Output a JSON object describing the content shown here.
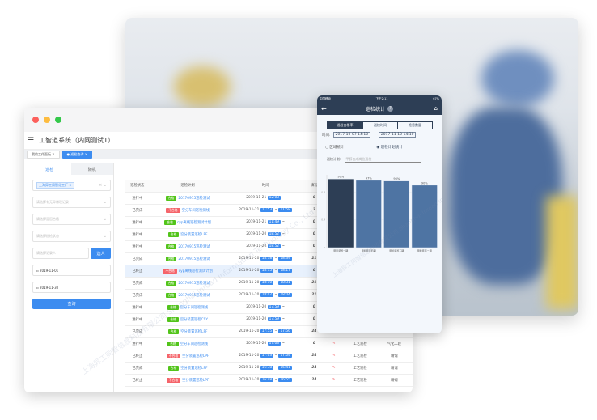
{
  "window": {
    "title": "工智道系统（内网测试1）",
    "tabs": [
      {
        "label": "我的工作面板"
      },
      {
        "label": "巡检查询"
      }
    ]
  },
  "filters": {
    "tabs": [
      {
        "label": "巡检"
      },
      {
        "label": "随机"
      }
    ],
    "factory_tag": "上海异工周智化工厂",
    "abnormal_placeholder": "请选择有无异常现记录",
    "qualified_placeholder": "请选择是否合格",
    "status_placeholder": "请选择巡检状态",
    "recorder_placeholder": "请选择记录人",
    "pick_button": "选人",
    "date_from": "2019-11-01",
    "date_to": "2019-11-30",
    "query_button": "查询"
  },
  "table": {
    "headers": [
      "巡检状态",
      "巡检计划",
      "时间",
      "填写",
      "",
      "",
      ""
    ],
    "rows": [
      {
        "status": "进行中",
        "result": "合格",
        "plan": "20170915巡检测试",
        "date": "2019-11-21",
        "start": "12:03",
        "end": "",
        "fill": "0",
        "c6": "",
        "c7": ""
      },
      {
        "status": "已完成",
        "result": "不合格",
        "plan": "空分车间巡检测线",
        "date": "2019-11-21",
        "start": "11:53",
        "end": "11:58",
        "fill": "2",
        "c6": "",
        "c7": ""
      },
      {
        "status": "进行中",
        "result": "合格",
        "plan": "cyp离线巡检测试计划",
        "date": "2019-11-21",
        "start": "11:49",
        "end": "",
        "fill": "0",
        "c6": "",
        "c7": ""
      },
      {
        "status": "进行中",
        "result": "合格",
        "plan": "空分装置巡检LPF",
        "date": "2019-11-20",
        "start": "18:52",
        "end": "",
        "fill": "0",
        "c6": "",
        "c7": ""
      },
      {
        "status": "进行中",
        "result": "合格",
        "plan": "20170915巡检测试",
        "date": "2019-11-20",
        "start": "18:52",
        "end": "",
        "fill": "0",
        "c6": "",
        "c7": ""
      },
      {
        "status": "已完成",
        "result": "合格",
        "plan": "20170915巡检测试",
        "date": "2019-11-20",
        "start": "18:18",
        "end": "18:39",
        "fill": "21",
        "c6": "",
        "c7": ""
      },
      {
        "status": "已终止",
        "result": "不合格",
        "plan": "cyp离线巡检测试计划",
        "date": "2019-11-20",
        "start": "18:15",
        "end": "18:17",
        "fill": "0",
        "c6": "",
        "c7": ""
      },
      {
        "status": "已完成",
        "result": "合格",
        "plan": "20170915巡检测试",
        "date": "2019-11-20",
        "start": "18:10",
        "end": "18:31",
        "fill": "21",
        "c6": "",
        "c7": ""
      },
      {
        "status": "已完成",
        "result": "合格",
        "plan": "20170915巡检测试",
        "date": "2019-11-20",
        "start": "18:02",
        "end": "18:04",
        "fill": "21",
        "c6": "",
        "c7": ""
      },
      {
        "status": "进行中",
        "result": "合格",
        "plan": "空分车间巡检测线",
        "date": "2019-11-20",
        "start": "17:59",
        "end": "",
        "fill": "0",
        "c6": "",
        "c7": ""
      },
      {
        "status": "进行中",
        "result": "合格",
        "plan": "空分装置巡检CSY",
        "date": "2019-11-20",
        "start": "17:59",
        "end": "",
        "fill": "0",
        "c6": "",
        "c7": ""
      },
      {
        "status": "已完成",
        "result": "合格",
        "plan": "空分装置巡检LPF",
        "date": "2019-11-20",
        "start": "17:55",
        "end": "17:56",
        "fill": "24",
        "c6": "工艺巡检",
        "c7": "精馏"
      },
      {
        "status": "进行中",
        "result": "合格",
        "plan": "空分车间巡检测线",
        "date": "2019-11-20",
        "start": "17:03",
        "end": "",
        "fill": "0",
        "c6": "工艺巡检",
        "c7": "气化工段"
      },
      {
        "status": "已终止",
        "result": "不合格",
        "plan": "空分装置巡检LPF",
        "date": "2019-11-20",
        "start": "17:03",
        "end": "17:04",
        "fill": "24",
        "c6": "工艺巡检",
        "c7": "精馏"
      },
      {
        "status": "已完成",
        "result": "合格",
        "plan": "空分装置巡检LPF",
        "date": "2019-11-20",
        "start": "16:38",
        "end": "16:41",
        "fill": "24",
        "c6": "工艺巡检",
        "c7": "精馏"
      },
      {
        "status": "已终止",
        "result": "不合格",
        "plan": "空分装置巡检LPF",
        "date": "2019-11-20",
        "start": "16:48",
        "end": "16:55",
        "fill": "24",
        "c6": "工艺巡检",
        "c7": "精馏"
      }
    ]
  },
  "phone": {
    "carrier": "中国移动",
    "clock": "下午2:11",
    "battery": "67%",
    "title": "巡检统计",
    "help": "?",
    "segments": [
      {
        "label": "巡检合格率"
      },
      {
        "label": "巡检时间"
      },
      {
        "label": "隐患数量"
      }
    ],
    "time_label": "时间:",
    "time_from": "2017-10-07 14:10",
    "time_sep": "~",
    "time_to": "2017-11-10 14:10",
    "radios": [
      {
        "label": "区域统计",
        "selected": false
      },
      {
        "label": "巡检计划统计",
        "selected": true
      }
    ],
    "plan_label": "巡检计划:",
    "plan_placeholder": "甲醇合成岗位巡检"
  },
  "chart_data": {
    "type": "bar",
    "categories": [
      "甲醇装置一期",
      "甲醇装置四期",
      "甲醇装置三期",
      "甲醇装置二期"
    ],
    "values": [
      0.99,
      0.97,
      0.96,
      0.9
    ],
    "data_labels": [
      "99%",
      "97%",
      "96%",
      "90%"
    ],
    "ylim": [
      0,
      1.05
    ],
    "yticks": [
      "0",
      "0.4",
      "0.8"
    ],
    "grid": true,
    "colors": [
      "#2d3e55",
      "#4e74a3",
      "#4e74a3",
      "#4e74a3"
    ]
  },
  "watermark": "上海异工同智信息科技有限公司 Shanghai Inroad Information Technology Co., Ltd.",
  "colors": {
    "accent": "#3c8cf0",
    "pass": "#52c41a",
    "fail": "#f5646a",
    "phone_header": "#2d3e55"
  }
}
